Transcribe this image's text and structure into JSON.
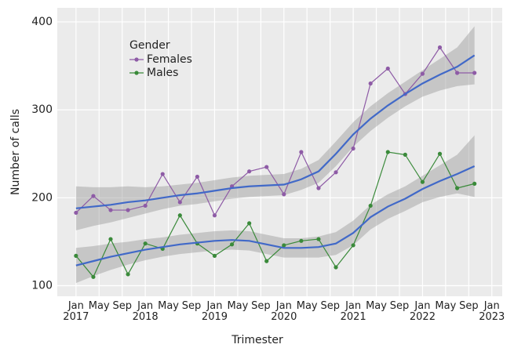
{
  "chart_data": {
    "type": "line",
    "x_label": "Trimester",
    "y_label": "Number of calls",
    "legend_title": "Gender",
    "legend": "top-left",
    "grid": true,
    "x": [
      2017,
      2017.25,
      2017.5,
      2017.75,
      2018,
      2018.25,
      2018.5,
      2018.75,
      2019,
      2019.25,
      2019.5,
      2019.75,
      2020,
      2020.25,
      2020.5,
      2020.75,
      2021,
      2021.25,
      2021.5,
      2021.75,
      2022,
      2022.25,
      2022.5,
      2022.75
    ],
    "series": [
      {
        "name": "Females",
        "color": "#8e5ba6",
        "values": [
          183,
          202,
          186,
          186,
          191,
          227,
          195,
          224,
          180,
          213,
          230,
          235,
          204,
          252,
          211,
          229,
          256,
          330,
          347,
          318,
          341,
          371,
          342,
          342
        ]
      },
      {
        "name": "Males",
        "color": "#3a8a3a",
        "values": [
          134,
          110,
          153,
          113,
          148,
          142,
          180,
          148,
          134,
          147,
          171,
          128,
          146,
          151,
          153,
          121,
          146,
          191,
          252,
          249,
          218,
          250,
          211,
          216
        ]
      }
    ],
    "trend_color": "#4169c8",
    "trends": [
      {
        "values": [
          188,
          190,
          192,
          195,
          197,
          200,
          203,
          205,
          208,
          211,
          213,
          214,
          215,
          221,
          230,
          250,
          272,
          290,
          305,
          318,
          330,
          340,
          349,
          362
        ],
        "lower": [
          163,
          168,
          172,
          177,
          182,
          187,
          191,
          193,
          196,
          199,
          201,
          202,
          203,
          209,
          217,
          236,
          258,
          276,
          291,
          304,
          315,
          322,
          327,
          329
        ],
        "upper": [
          213,
          212,
          212,
          213,
          212,
          213,
          215,
          217,
          220,
          223,
          225,
          226,
          227,
          233,
          243,
          264,
          286,
          304,
          319,
          332,
          345,
          358,
          371,
          395
        ]
      },
      {
        "values": [
          123,
          128,
          133,
          137,
          141,
          144,
          147,
          149,
          151,
          152,
          151,
          147,
          143,
          143,
          144,
          148,
          160,
          178,
          190,
          199,
          210,
          219,
          227,
          236
        ],
        "lower": [
          103,
          111,
          118,
          124,
          129,
          133,
          136,
          138,
          140,
          141,
          140,
          136,
          132,
          132,
          132,
          135,
          146,
          164,
          176,
          185,
          195,
          201,
          205,
          201
        ],
        "upper": [
          143,
          145,
          148,
          150,
          153,
          155,
          158,
          160,
          162,
          163,
          162,
          158,
          154,
          154,
          156,
          161,
          174,
          192,
          204,
          213,
          225,
          237,
          249,
          271
        ]
      }
    ],
    "xlim": [
      2016.73,
      2023.15
    ],
    "xticks": [
      {
        "value": 2017,
        "label": "Jan\n2017"
      },
      {
        "value": 2017.333,
        "label": "May"
      },
      {
        "value": 2017.667,
        "label": "Sep"
      },
      {
        "value": 2018,
        "label": "Jan\n2018"
      },
      {
        "value": 2018.333,
        "label": "May"
      },
      {
        "value": 2018.667,
        "label": "Sep"
      },
      {
        "value": 2019,
        "label": "Jan\n2019"
      },
      {
        "value": 2019.333,
        "label": "May"
      },
      {
        "value": 2019.667,
        "label": "Sep"
      },
      {
        "value": 2020,
        "label": "Jan\n2020"
      },
      {
        "value": 2020.333,
        "label": "May"
      },
      {
        "value": 2020.667,
        "label": "Sep"
      },
      {
        "value": 2021,
        "label": "Jan\n2021"
      },
      {
        "value": 2021.333,
        "label": "May"
      },
      {
        "value": 2021.667,
        "label": "Sep"
      },
      {
        "value": 2022,
        "label": "Jan\n2022"
      },
      {
        "value": 2022.333,
        "label": "May"
      },
      {
        "value": 2022.667,
        "label": "Sep"
      },
      {
        "value": 2023,
        "label": "Jan\n2023"
      }
    ],
    "ylim": [
      88,
      416
    ],
    "yticks": [
      100,
      200,
      300,
      400
    ]
  }
}
